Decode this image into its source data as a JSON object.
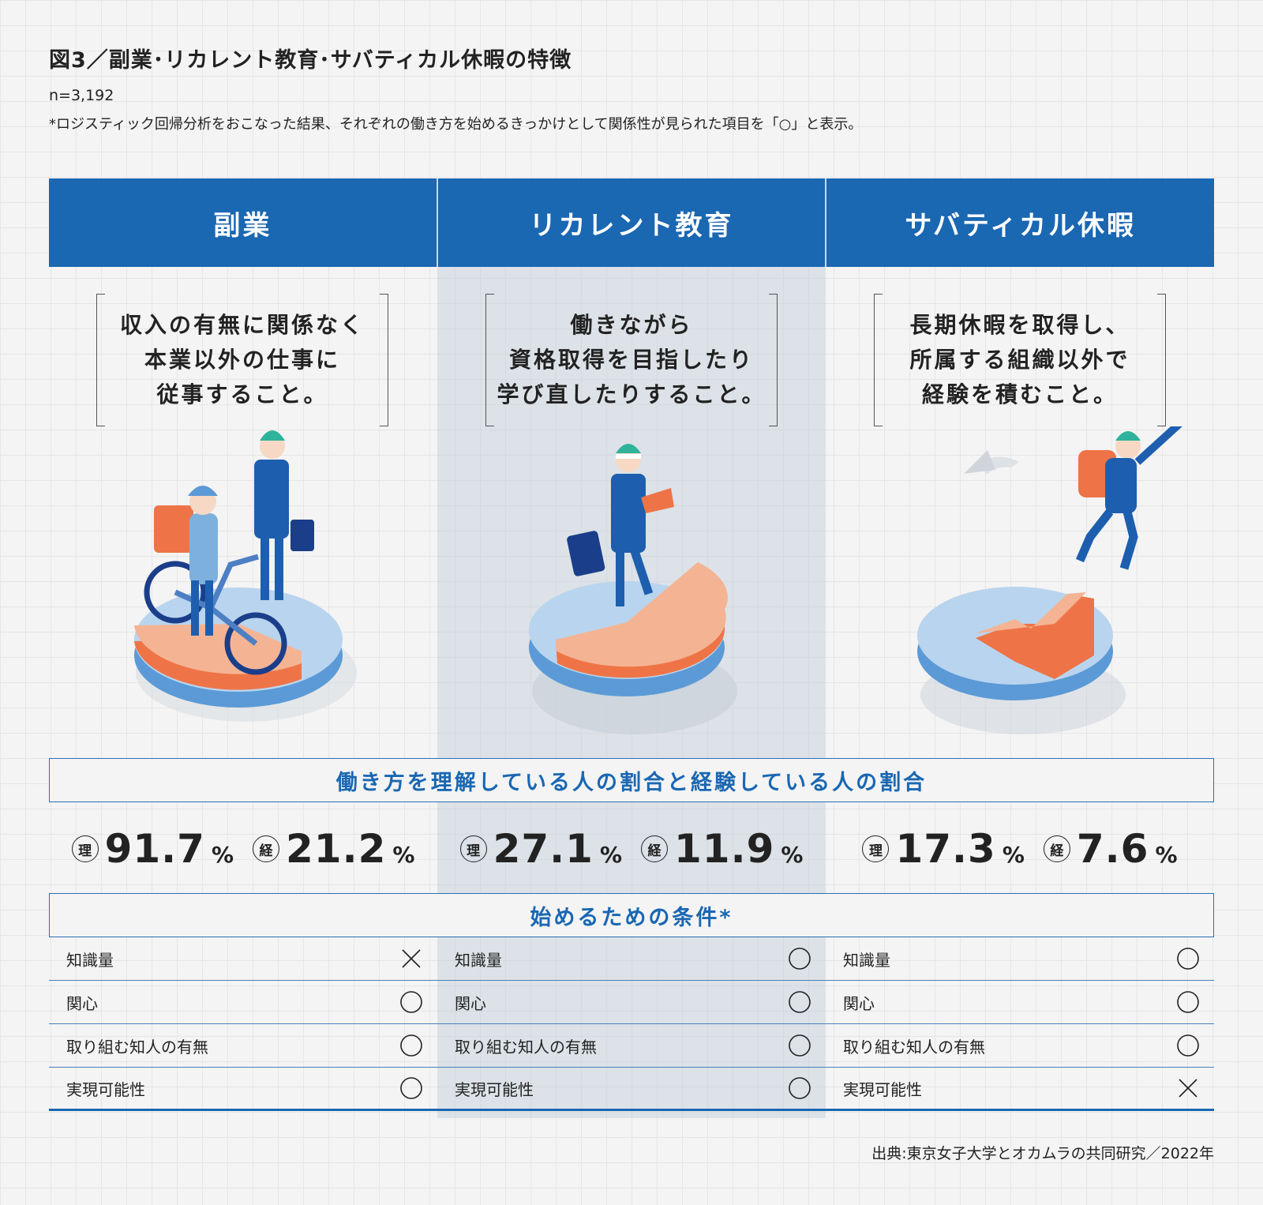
{
  "title": "図3／副業･リカレント教育･サバティカル休暇の特徴",
  "sample": "n=3,192",
  "note": "*ロジスティック回帰分析をおこなった結果、それぞれの働き方を始めるきっかけとして関係性が見られた項目を「○」と表示。",
  "columns": [
    {
      "header": "副業",
      "description": "収入の有無に関係なく\n本業以外の仕事に\n従事すること。",
      "understand_label": "理",
      "understand_value": "91.7",
      "understand_pct": 91.7,
      "experience_label": "経",
      "experience_value": "21.2",
      "experience_pct": 21.2,
      "conditions": [
        {
          "label": "知識量",
          "mark": "×"
        },
        {
          "label": "関心",
          "mark": "○"
        },
        {
          "label": "取り組む知人の有無",
          "mark": "○"
        },
        {
          "label": "実現可能性",
          "mark": "○"
        }
      ]
    },
    {
      "header": "リカレント教育",
      "description": "働きながら\n資格取得を目指したり\n学び直したりすること。",
      "understand_label": "理",
      "understand_value": "27.1",
      "understand_pct": 27.1,
      "experience_label": "経",
      "experience_value": "11.9",
      "experience_pct": 11.9,
      "conditions": [
        {
          "label": "知識量",
          "mark": "○"
        },
        {
          "label": "関心",
          "mark": "○"
        },
        {
          "label": "取り組む知人の有無",
          "mark": "○"
        },
        {
          "label": "実現可能性",
          "mark": "○"
        }
      ]
    },
    {
      "header": "サバティカル休暇",
      "description": "長期休暇を取得し、\n所属する組織以外で\n経験を積むこと。",
      "understand_label": "理",
      "understand_value": "17.3",
      "understand_pct": 17.3,
      "experience_label": "経",
      "experience_value": "7.6",
      "experience_pct": 7.6,
      "conditions": [
        {
          "label": "知識量",
          "mark": "○"
        },
        {
          "label": "関心",
          "mark": "○"
        },
        {
          "label": "取り組む知人の有無",
          "mark": "○"
        },
        {
          "label": "実現可能性",
          "mark": "×"
        }
      ]
    }
  ],
  "pct_symbol": "%",
  "band_ratio": "働き方を理解している人の割合と経験している人の割合",
  "band_conditions": "始めるための条件*",
  "source": "出典:東京女子大学とオカムラの共同研究／2022年",
  "colors": {
    "header_blue": "#1a67b2",
    "pie_blue": "#b9d4ee",
    "pie_orange": "#ee7447",
    "suit_blue": "#1d5fae"
  }
}
